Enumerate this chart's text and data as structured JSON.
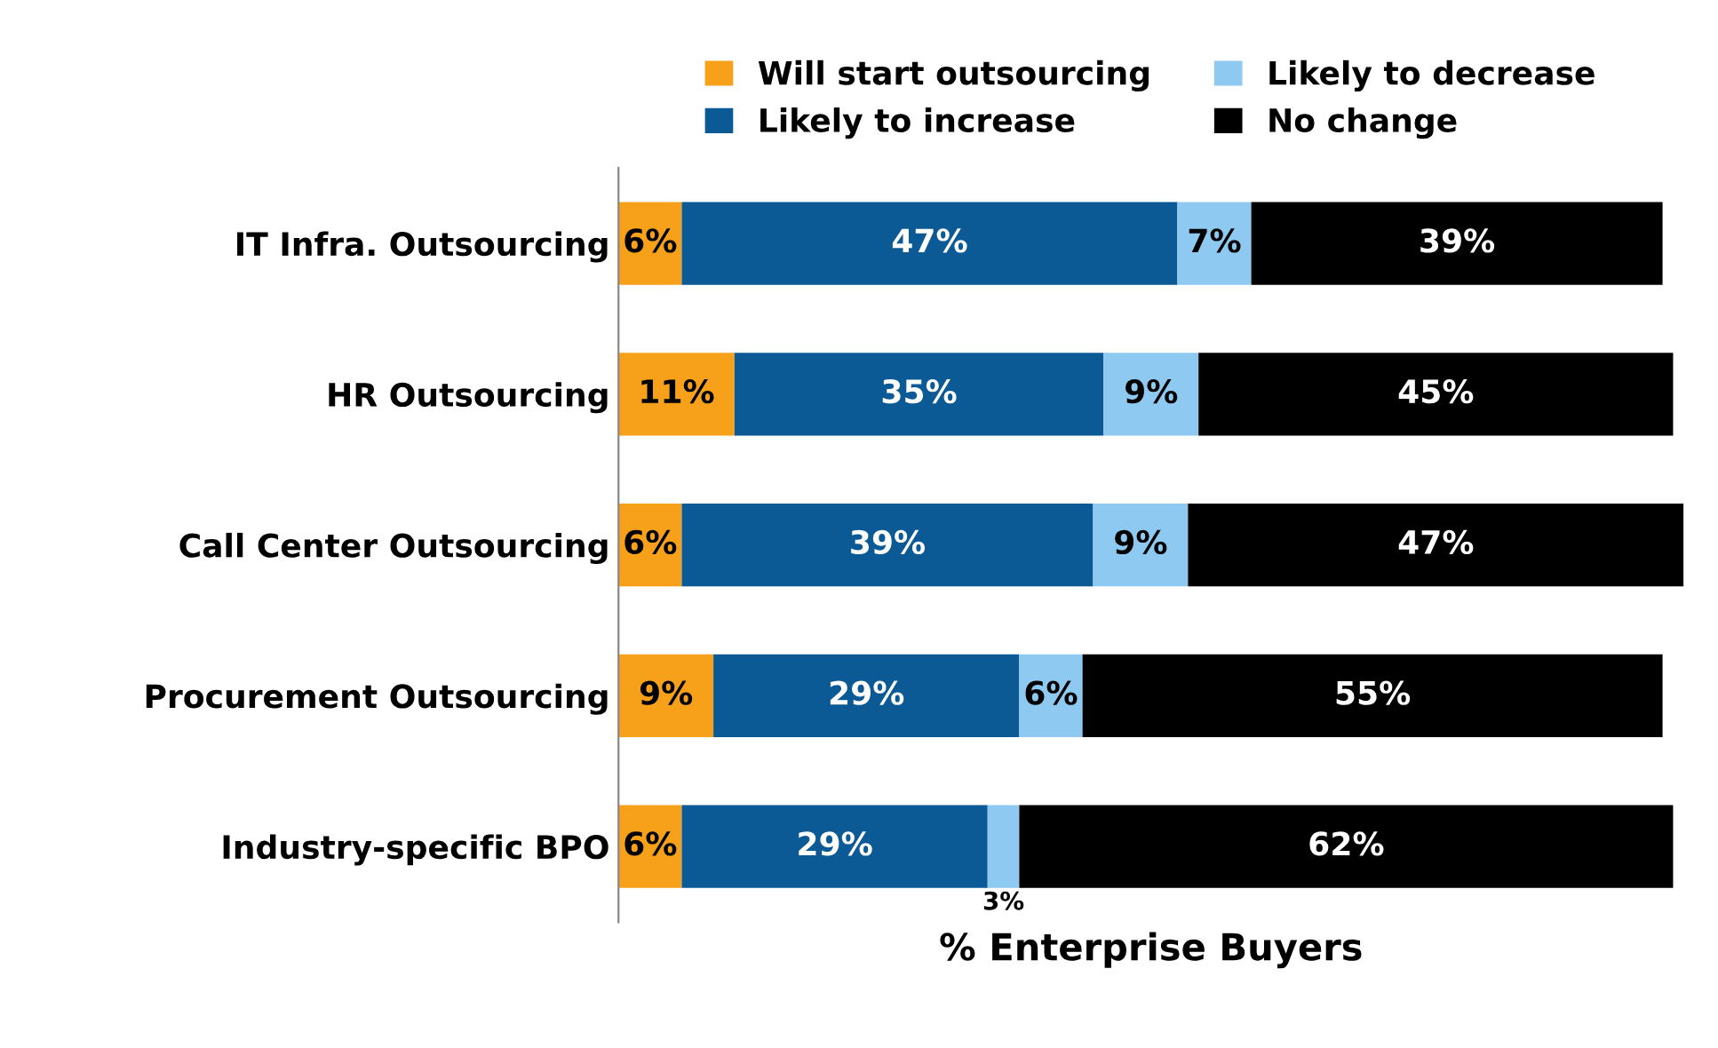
{
  "chart_data": {
    "type": "bar",
    "orientation": "horizontal",
    "stacked": true,
    "xlabel": "% Enterprise Buyers",
    "categories": [
      "IT Infra. Outsourcing",
      "HR Outsourcing",
      "Call Center Outsourcing",
      "Procurement Outsourcing",
      "Industry-specific BPO"
    ],
    "series": [
      {
        "name": "Will start outsourcing",
        "color": "#f7a11a",
        "values": [
          6,
          11,
          6,
          9,
          6
        ],
        "value_labels": [
          "6%",
          "11%",
          "6%",
          "9%",
          "6%"
        ]
      },
      {
        "name": "Likely to increase",
        "color": "#0b5a96",
        "values": [
          47,
          35,
          39,
          29,
          29
        ],
        "value_labels": [
          "47%",
          "35%",
          "39%",
          "29%",
          "29%"
        ]
      },
      {
        "name": "Likely to decrease",
        "color": "#8ec9f2",
        "values": [
          7,
          9,
          9,
          6,
          3
        ],
        "value_labels": [
          "7%",
          "9%",
          "9%",
          "6%",
          "3%"
        ]
      },
      {
        "name": "No change",
        "color": "#000000",
        "values": [
          39,
          45,
          47,
          55,
          62
        ],
        "value_labels": [
          "39%",
          "45%",
          "47%",
          "55%",
          "62%"
        ]
      }
    ],
    "legend": "top",
    "grid": false
  }
}
